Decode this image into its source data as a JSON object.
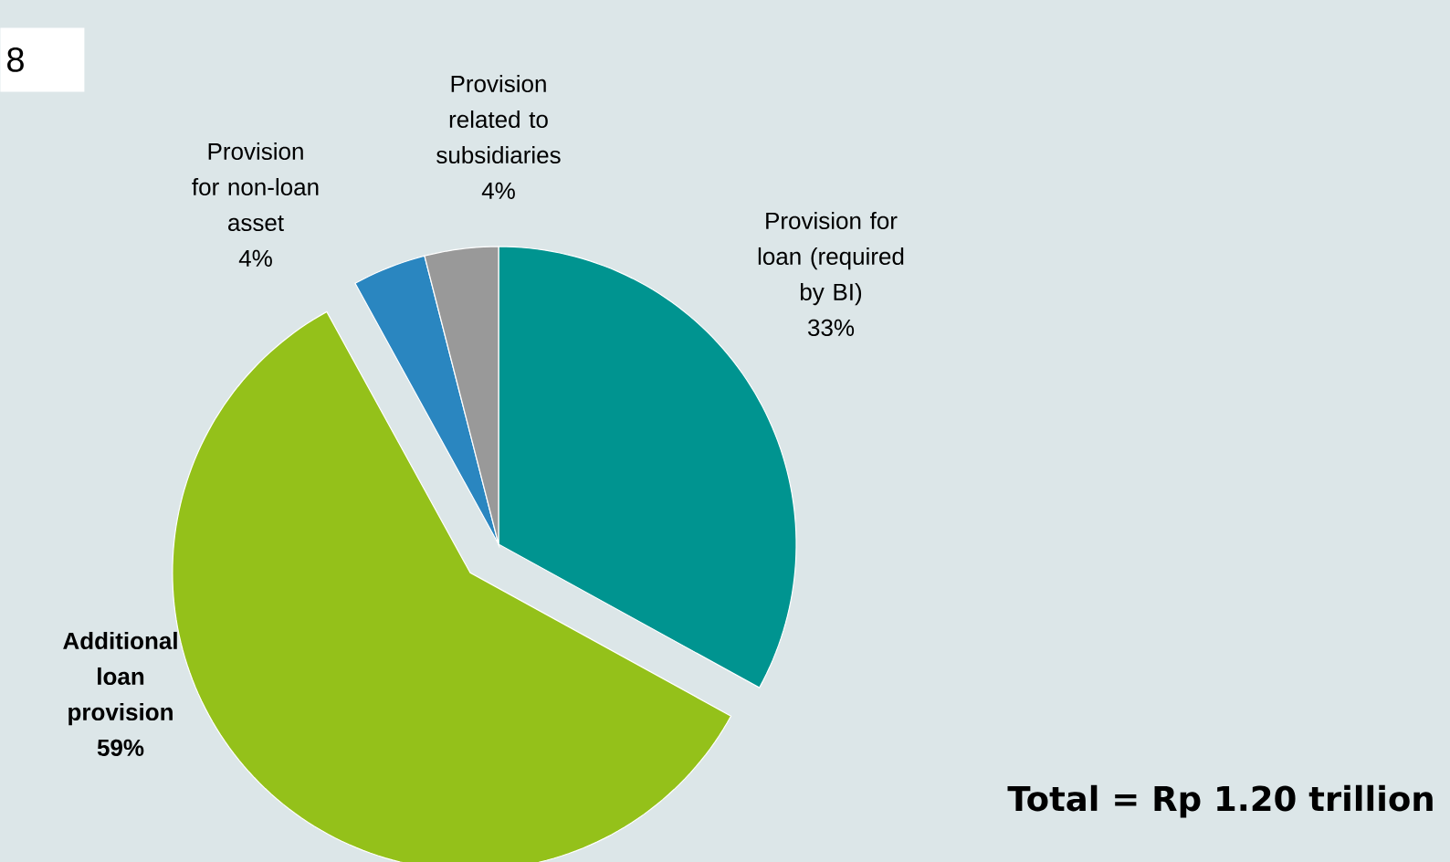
{
  "chart_data": {
    "type": "pie",
    "categories": [
      "Provision for loan (required by BI)",
      "Additional loan provision",
      "Provision for non-loan asset",
      "Provision related to subsidiaries"
    ],
    "values": [
      33,
      59,
      4,
      4
    ],
    "value_labels": [
      "33%",
      "59%",
      "4%",
      "4%"
    ],
    "colors": [
      "#009490",
      "#94c11a",
      "#2a86c0",
      "#999999"
    ],
    "annotations": [
      "8",
      "Total = Rp 1.20 trillion"
    ]
  }
}
